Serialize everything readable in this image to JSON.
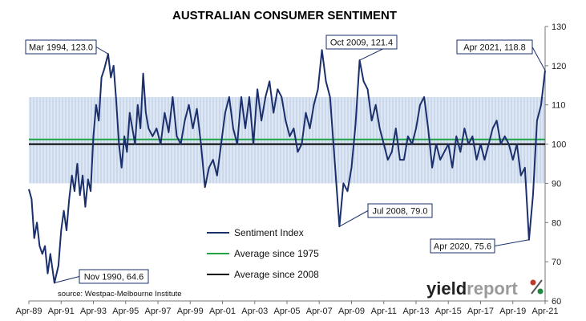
{
  "chart_data": {
    "type": "line",
    "title": "AUSTRALIAN CONSUMER SENTIMENT",
    "xlabel": "",
    "ylabel": "",
    "ylim": [
      60,
      130
    ],
    "y_ticks": [
      "60",
      "70",
      "80",
      "90",
      "100",
      "110",
      "120",
      "130"
    ],
    "y_axis_side": "right",
    "x_range": [
      "1989-04",
      "2021-04"
    ],
    "x_tick_labels": [
      "Apr-89",
      "Apr-91",
      "Apr-93",
      "Apr-95",
      "Apr-97",
      "Apr-99",
      "Apr-01",
      "Apr-03",
      "Apr-05",
      "Apr-07",
      "Apr-09",
      "Apr-11",
      "Apr-13",
      "Apr-15",
      "Apr-17",
      "Apr-19",
      "Apr-21"
    ],
    "band": {
      "from": 90,
      "to": 112,
      "color": "#dde6f3",
      "line_color": "#b9cbe6"
    },
    "series": [
      {
        "name": "Sentiment Index",
        "color": "#1a2f6b",
        "points": [
          [
            "1989-04",
            88.5
          ],
          [
            "1989-06",
            86.0
          ],
          [
            "1989-08",
            76.0
          ],
          [
            "1989-10",
            80.0
          ],
          [
            "1989-12",
            74.0
          ],
          [
            "1990-02",
            72.0
          ],
          [
            "1990-04",
            74.0
          ],
          [
            "1990-06",
            67.0
          ],
          [
            "1990-08",
            72.0
          ],
          [
            "1990-11",
            64.6
          ],
          [
            "1991-02",
            69.0
          ],
          [
            "1991-04",
            78.0
          ],
          [
            "1991-06",
            83.0
          ],
          [
            "1991-08",
            78.0
          ],
          [
            "1991-10",
            86.0
          ],
          [
            "1991-12",
            92.0
          ],
          [
            "1992-02",
            88.0
          ],
          [
            "1992-04",
            95.0
          ],
          [
            "1992-06",
            87.0
          ],
          [
            "1992-08",
            92.0
          ],
          [
            "1992-10",
            84.0
          ],
          [
            "1992-12",
            91.0
          ],
          [
            "1993-02",
            88.0
          ],
          [
            "1993-04",
            102.0
          ],
          [
            "1993-06",
            110.0
          ],
          [
            "1993-08",
            106.0
          ],
          [
            "1993-10",
            117.0
          ],
          [
            "1993-12",
            119.0
          ],
          [
            "1994-03",
            123.0
          ],
          [
            "1994-05",
            117.0
          ],
          [
            "1994-07",
            120.0
          ],
          [
            "1994-09",
            111.0
          ],
          [
            "1994-11",
            100.0
          ],
          [
            "1995-01",
            94.0
          ],
          [
            "1995-03",
            102.0
          ],
          [
            "1995-05",
            98.0
          ],
          [
            "1995-07",
            108.0
          ],
          [
            "1995-09",
            104.0
          ],
          [
            "1995-11",
            100.0
          ],
          [
            "1996-01",
            110.0
          ],
          [
            "1996-03",
            104.0
          ],
          [
            "1996-05",
            118.0
          ],
          [
            "1996-07",
            108.0
          ],
          [
            "1996-09",
            104.0
          ],
          [
            "1996-12",
            102.0
          ],
          [
            "1997-03",
            104.0
          ],
          [
            "1997-06",
            100.0
          ],
          [
            "1997-09",
            108.0
          ],
          [
            "1997-12",
            103.0
          ],
          [
            "1998-03",
            112.0
          ],
          [
            "1998-06",
            102.0
          ],
          [
            "1998-09",
            100.0
          ],
          [
            "1998-12",
            106.0
          ],
          [
            "1999-03",
            110.0
          ],
          [
            "1999-06",
            104.0
          ],
          [
            "1999-09",
            109.0
          ],
          [
            "1999-12",
            100.0
          ],
          [
            "2000-03",
            89.0
          ],
          [
            "2000-06",
            94.0
          ],
          [
            "2000-09",
            96.0
          ],
          [
            "2000-12",
            92.0
          ],
          [
            "2001-03",
            100.0
          ],
          [
            "2001-06",
            108.0
          ],
          [
            "2001-09",
            112.0
          ],
          [
            "2001-12",
            104.0
          ],
          [
            "2002-03",
            100.0
          ],
          [
            "2002-06",
            112.0
          ],
          [
            "2002-09",
            104.0
          ],
          [
            "2002-12",
            112.0
          ],
          [
            "2003-03",
            100.0
          ],
          [
            "2003-06",
            114.0
          ],
          [
            "2003-09",
            106.0
          ],
          [
            "2003-12",
            112.0
          ],
          [
            "2004-03",
            116.0
          ],
          [
            "2004-06",
            108.0
          ],
          [
            "2004-09",
            114.0
          ],
          [
            "2004-12",
            112.0
          ],
          [
            "2005-03",
            106.0
          ],
          [
            "2005-06",
            102.0
          ],
          [
            "2005-09",
            104.0
          ],
          [
            "2005-12",
            98.0
          ],
          [
            "2006-03",
            100.0
          ],
          [
            "2006-06",
            108.0
          ],
          [
            "2006-09",
            104.0
          ],
          [
            "2006-12",
            110.0
          ],
          [
            "2007-03",
            114.0
          ],
          [
            "2007-06",
            124.0
          ],
          [
            "2007-09",
            116.0
          ],
          [
            "2007-12",
            112.0
          ],
          [
            "2008-03",
            98.0
          ],
          [
            "2008-07",
            79.0
          ],
          [
            "2008-10",
            90.0
          ],
          [
            "2009-01",
            88.0
          ],
          [
            "2009-04",
            94.0
          ],
          [
            "2009-07",
            105.0
          ],
          [
            "2009-10",
            121.4
          ],
          [
            "2010-01",
            116.0
          ],
          [
            "2010-04",
            114.0
          ],
          [
            "2010-07",
            106.0
          ],
          [
            "2010-10",
            110.0
          ],
          [
            "2011-01",
            104.0
          ],
          [
            "2011-04",
            100.0
          ],
          [
            "2011-07",
            96.0
          ],
          [
            "2011-10",
            98.0
          ],
          [
            "2012-01",
            104.0
          ],
          [
            "2012-04",
            96.0
          ],
          [
            "2012-07",
            96.0
          ],
          [
            "2012-10",
            102.0
          ],
          [
            "2013-01",
            100.0
          ],
          [
            "2013-04",
            104.0
          ],
          [
            "2013-07",
            110.0
          ],
          [
            "2013-10",
            112.0
          ],
          [
            "2014-01",
            104.0
          ],
          [
            "2014-04",
            94.0
          ],
          [
            "2014-07",
            100.0
          ],
          [
            "2014-10",
            96.0
          ],
          [
            "2015-01",
            98.0
          ],
          [
            "2015-04",
            100.0
          ],
          [
            "2015-07",
            94.0
          ],
          [
            "2015-10",
            102.0
          ],
          [
            "2016-01",
            98.0
          ],
          [
            "2016-04",
            104.0
          ],
          [
            "2016-07",
            100.0
          ],
          [
            "2016-10",
            102.0
          ],
          [
            "2017-01",
            96.0
          ],
          [
            "2017-04",
            100.0
          ],
          [
            "2017-07",
            96.0
          ],
          [
            "2017-10",
            100.0
          ],
          [
            "2018-01",
            104.0
          ],
          [
            "2018-04",
            106.0
          ],
          [
            "2018-07",
            100.0
          ],
          [
            "2018-10",
            102.0
          ],
          [
            "2019-01",
            100.0
          ],
          [
            "2019-04",
            96.0
          ],
          [
            "2019-07",
            100.0
          ],
          [
            "2019-10",
            92.0
          ],
          [
            "2020-01",
            94.0
          ],
          [
            "2020-04",
            75.6
          ],
          [
            "2020-07",
            87.0
          ],
          [
            "2020-10",
            106.0
          ],
          [
            "2021-01",
            110.0
          ],
          [
            "2021-04",
            118.8
          ]
        ]
      },
      {
        "name": "Average since 1975",
        "color": "#21a348",
        "value": 101.2
      },
      {
        "name": "Average since 2008",
        "color": "#000000",
        "value": 100.0
      }
    ],
    "annotations": [
      {
        "text": "Mar 1994, 123.0",
        "x": "1994-03",
        "y": 123.0
      },
      {
        "text": "Nov 1990, 64.6",
        "x": "1990-11",
        "y": 64.6
      },
      {
        "text": "Oct 2009, 121.4",
        "x": "2009-10",
        "y": 121.4
      },
      {
        "text": "Jul 2008, 79.0",
        "x": "2008-07",
        "y": 79.0
      },
      {
        "text": "Apr 2020, 75.6",
        "x": "2020-04",
        "y": 75.6
      },
      {
        "text": "Apr 2021, 118.8",
        "x": "2021-04",
        "y": 118.8
      }
    ],
    "legend_position": "bottom-center",
    "source": "source: Westpac-Melbourne Institute"
  },
  "brand": {
    "part1": "yield",
    "part2": "report",
    "icon_name": "percent-icon",
    "icon_colors": [
      "#c0392b",
      "#1e8a3e"
    ]
  }
}
